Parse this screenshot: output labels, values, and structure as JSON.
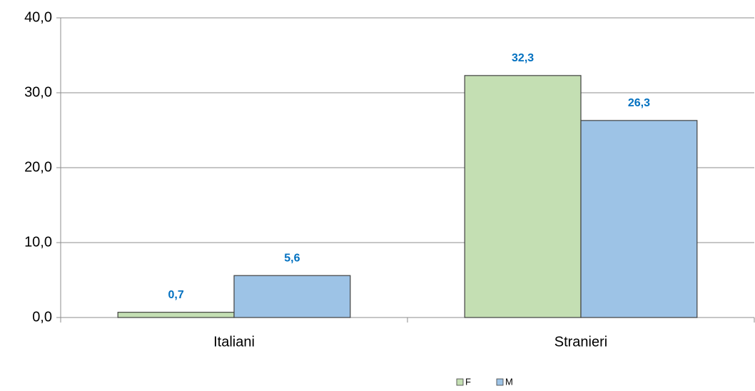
{
  "chart_data": {
    "type": "bar",
    "categories": [
      "Italiani",
      "Stranieri"
    ],
    "series": [
      {
        "name": "F",
        "color": "#c4dfb3",
        "values": [
          0.7,
          32.3
        ],
        "value_labels": [
          "0,7",
          "32,3"
        ]
      },
      {
        "name": "M",
        "color": "#9dc3e6",
        "values": [
          5.6,
          26.3
        ],
        "value_labels": [
          "5,6",
          "26,3"
        ]
      }
    ],
    "ylim": [
      0,
      40
    ],
    "yticks": [
      {
        "value": 0,
        "label": "0,0"
      },
      {
        "value": 10,
        "label": "10,0"
      },
      {
        "value": 20,
        "label": "20,0"
      },
      {
        "value": 30,
        "label": "30,0"
      },
      {
        "value": 40,
        "label": "40,0"
      }
    ],
    "grid": true,
    "legend": "bottom"
  }
}
